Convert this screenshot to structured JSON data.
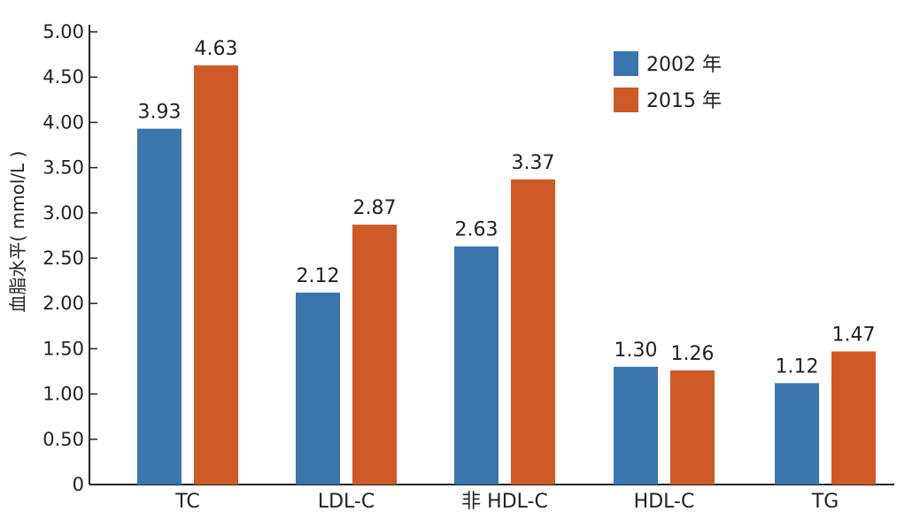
{
  "chart_data": {
    "type": "bar",
    "title": "",
    "xlabel": "",
    "ylabel": "血脂水平( mmol/L )",
    "ylim": [
      0,
      5.0
    ],
    "yticks": [
      "0",
      "0.50",
      "1.00",
      "1.50",
      "2.00",
      "2.50",
      "3.00",
      "3.50",
      "4.00",
      "4.50",
      "5.00"
    ],
    "categories": [
      "TC",
      "LDL-C",
      "非 HDL-C",
      "HDL-C",
      "TG"
    ],
    "series": [
      {
        "name": "2002 年",
        "color": "#3a76ad",
        "values": [
          3.93,
          2.12,
          2.63,
          1.3,
          1.12
        ]
      },
      {
        "name": "2015 年",
        "color": "#cf5a27",
        "values": [
          4.63,
          2.87,
          3.37,
          1.26,
          1.47
        ]
      }
    ],
    "legend_position": "top-right",
    "grid": false
  }
}
